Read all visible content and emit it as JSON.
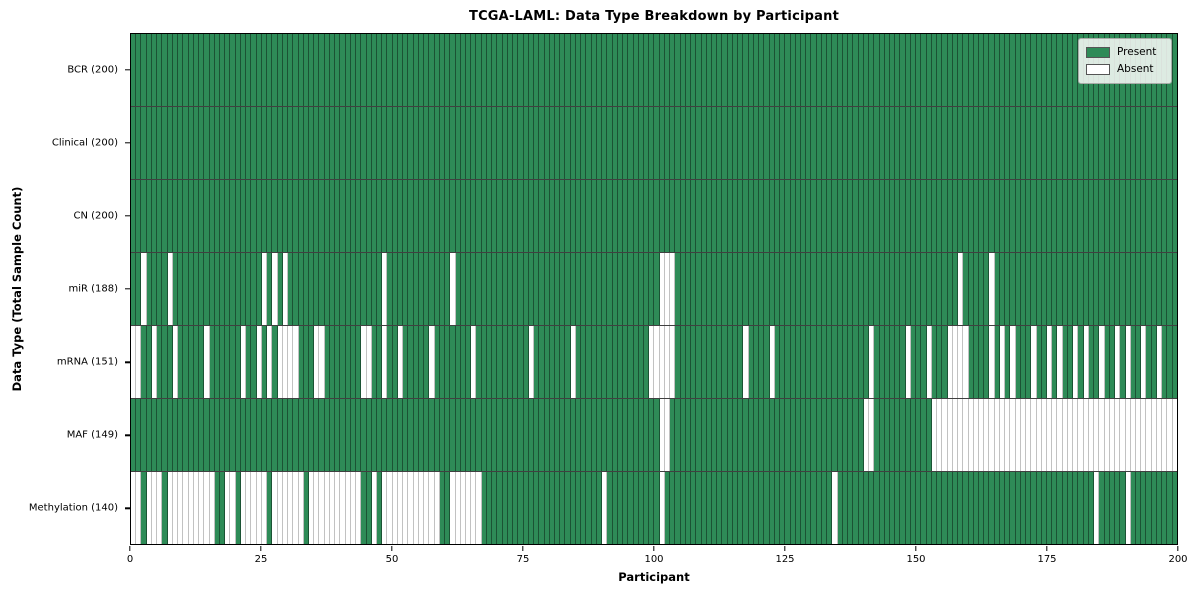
{
  "chart_data": {
    "type": "heatmap",
    "title": "TCGA-LAML: Data Type Breakdown by Participant",
    "xlabel": "Participant",
    "ylabel": "Data Type (Total Sample Count)",
    "n_participants": 200,
    "x_ticks": [
      0,
      25,
      50,
      75,
      100,
      125,
      150,
      175,
      200
    ],
    "colors": {
      "present": "#2e8b57",
      "absent": "#ffffff"
    },
    "legend": [
      {
        "label": "Present",
        "color": "#2e8b57"
      },
      {
        "label": "Absent",
        "color": "#ffffff"
      }
    ],
    "legend_position": "upper right",
    "rows": [
      {
        "name": "BCR",
        "label": "BCR (200)",
        "present_count": 200,
        "absent_participants": []
      },
      {
        "name": "Clinical",
        "label": "Clinical (200)",
        "present_count": 200,
        "absent_participants": []
      },
      {
        "name": "CN",
        "label": "CN (200)",
        "present_count": 200,
        "absent_participants": []
      },
      {
        "name": "miR",
        "label": "miR (188)",
        "present_count": 188,
        "absent_participants": [
          2,
          7,
          25,
          27,
          29,
          48,
          61,
          101,
          102,
          103,
          158,
          164
        ]
      },
      {
        "name": "mRNA",
        "label": "mRNA (151)",
        "present_count": 151,
        "absent_participants": [
          0,
          1,
          4,
          8,
          14,
          21,
          24,
          26,
          28,
          29,
          30,
          31,
          35,
          36,
          44,
          45,
          48,
          51,
          57,
          65,
          76,
          84,
          99,
          100,
          101,
          102,
          103,
          117,
          122,
          141,
          148,
          152,
          156,
          157,
          158,
          159,
          164,
          166,
          168,
          172,
          175,
          177,
          180,
          182,
          185,
          188,
          190,
          193,
          196
        ]
      },
      {
        "name": "MAF",
        "label": "MAF (149)",
        "present_count": 149,
        "absent_participants": [
          101,
          102,
          140,
          141,
          153,
          154,
          155,
          156,
          157,
          158,
          159,
          160,
          161,
          162,
          163,
          164,
          165,
          166,
          167,
          168,
          169,
          170,
          171,
          172,
          173,
          174,
          175,
          176,
          177,
          178,
          179,
          180,
          181,
          182,
          183,
          184,
          185,
          186,
          187,
          188,
          189,
          190,
          191,
          192,
          193,
          194,
          195,
          196,
          197,
          198,
          199
        ]
      },
      {
        "name": "Methylation",
        "label": "Methylation (140)",
        "present_count": 140,
        "absent_participants": [
          0,
          1,
          3,
          4,
          5,
          7,
          8,
          9,
          10,
          11,
          12,
          13,
          14,
          15,
          18,
          19,
          21,
          22,
          23,
          24,
          25,
          27,
          28,
          29,
          30,
          31,
          32,
          34,
          35,
          36,
          37,
          38,
          39,
          40,
          41,
          42,
          43,
          46,
          48,
          49,
          50,
          51,
          52,
          53,
          54,
          55,
          56,
          57,
          58,
          61,
          62,
          63,
          64,
          65,
          66,
          90,
          101,
          134,
          184,
          190
        ]
      }
    ]
  }
}
